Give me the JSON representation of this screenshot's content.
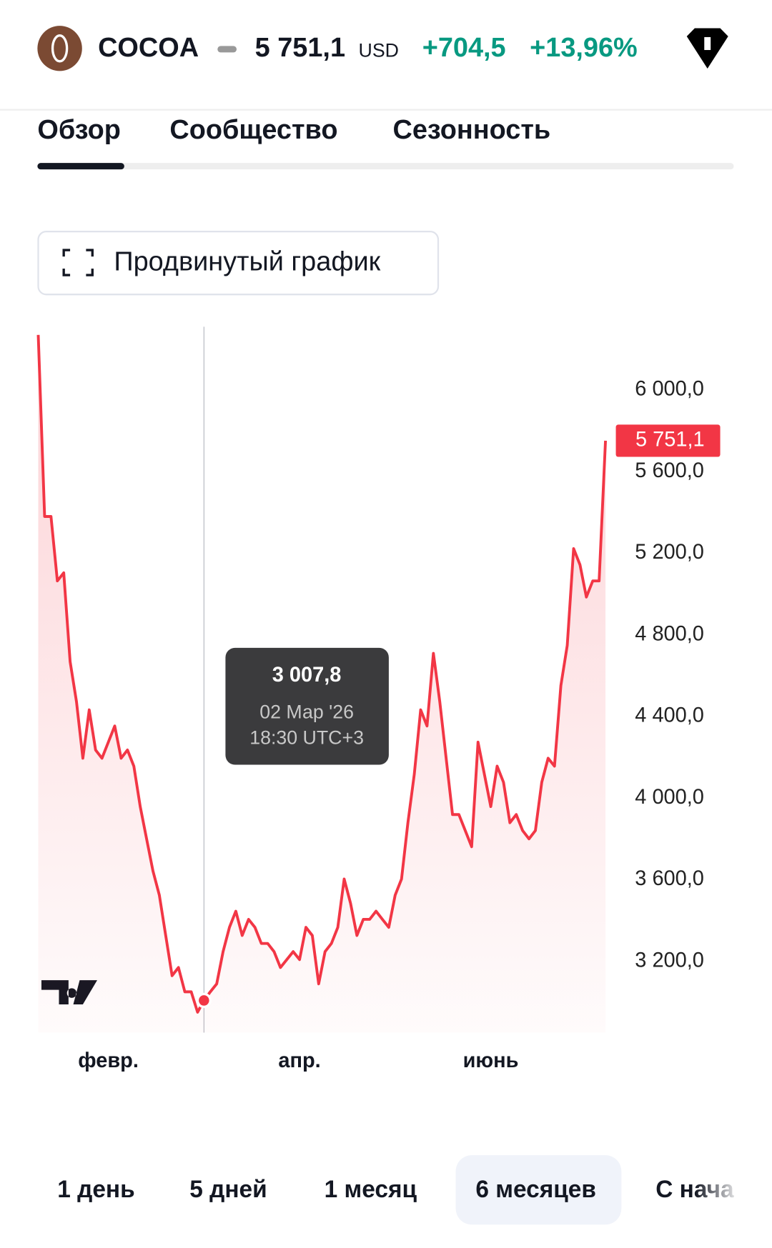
{
  "header": {
    "symbol": "COCOA",
    "price": "5 751,1",
    "currency": "USD",
    "change": "+704,5",
    "change_percent": "+13,96%"
  },
  "tabs": [
    "Обзор",
    "Сообщество",
    "Сезонность"
  ],
  "advanced_chart_button": "Продвинутый график",
  "chart_data": {
    "type": "line",
    "categories": [
      null,
      null,
      null,
      null,
      null,
      null,
      null,
      null,
      null,
      null,
      null,
      "февр.",
      null,
      null,
      null,
      null,
      null,
      null,
      null,
      null,
      null,
      null,
      null,
      null,
      null,
      null,
      null,
      null,
      null,
      null,
      null,
      null,
      null,
      null,
      null,
      null,
      null,
      null,
      null,
      null,
      null,
      "апр.",
      null,
      null,
      null,
      null,
      null,
      null,
      null,
      null,
      null,
      null,
      null,
      null,
      null,
      null,
      null,
      null,
      null,
      null,
      null,
      null,
      null,
      null,
      null,
      null,
      null,
      null,
      null,
      null,
      null,
      "июнь",
      null,
      null,
      null,
      null,
      null,
      null,
      null,
      null,
      null,
      null,
      null,
      null,
      null,
      null,
      null,
      null,
      null,
      null
    ],
    "series": [
      {
        "color": "#f23645",
        "values": [
          6270,
          5380,
          5380,
          5064,
          5104,
          4669,
          4472,
          4195,
          4432,
          4235,
          4195,
          4274,
          4353,
          4195,
          4235,
          4156,
          3958,
          3800,
          3642,
          3524,
          3326,
          3129,
          3169,
          3050,
          3050,
          2950,
          3007.8,
          3050,
          3089,
          3247,
          3366,
          3445,
          3326,
          3405,
          3366,
          3287,
          3287,
          3247,
          3169,
          3208,
          3247,
          3208,
          3366,
          3326,
          3089,
          3247,
          3287,
          3366,
          3603,
          3484,
          3326,
          3405,
          3405,
          3445,
          3405,
          3366,
          3524,
          3603,
          3879,
          4116,
          4432,
          4353,
          4709,
          4472,
          4195,
          3919,
          3919,
          3840,
          3761,
          4274,
          4116,
          3958,
          4156,
          4077,
          3879,
          3919,
          3840,
          3800,
          3840,
          4077,
          4195,
          4156,
          4551,
          4748,
          5222,
          5143,
          4985,
          5064,
          5064,
          5751.1
        ],
        "value_labels": [
          null,
          null,
          null,
          null,
          null,
          null,
          null,
          null,
          null,
          null,
          null,
          null,
          null,
          null,
          null,
          null,
          null,
          null,
          null,
          null,
          null,
          null,
          null,
          null,
          null,
          null,
          "3 007,8",
          null,
          null,
          null,
          null,
          null,
          null,
          null,
          null,
          null,
          null,
          null,
          null,
          null,
          null,
          null,
          null,
          null,
          null,
          null,
          null,
          null,
          null,
          null,
          null,
          null,
          null,
          null,
          null,
          null,
          null,
          null,
          null,
          null,
          null,
          null,
          null,
          null,
          null,
          null,
          null,
          null,
          null,
          null,
          null,
          null,
          null,
          null,
          null,
          null,
          null,
          null,
          null,
          null,
          null,
          null,
          null,
          null,
          null,
          null,
          null,
          null,
          null,
          "5 751,1"
        ]
      }
    ],
    "tooltip": {
      "date": "02 Мар '26",
      "time": "18:30 UTC+3"
    },
    "ylim": [
      2850,
      6310
    ],
    "yticks": [
      {
        "value": 3200,
        "label": "3 200,0"
      },
      {
        "value": 3600,
        "label": "3 600,0"
      },
      {
        "value": 4000,
        "label": "4 000,0"
      },
      {
        "value": 4400,
        "label": "4 400,0"
      },
      {
        "value": 4800,
        "label": "4 800,0"
      },
      {
        "value": 5200,
        "label": "5 200,0"
      },
      {
        "value": 5600,
        "label": "5 600,0"
      },
      {
        "value": 6000,
        "label": "6 000,0"
      }
    ],
    "grid": false
  },
  "range_buttons": [
    "1 день",
    "5 дней",
    "1 месяц",
    "6 месяцев",
    "С нача"
  ]
}
